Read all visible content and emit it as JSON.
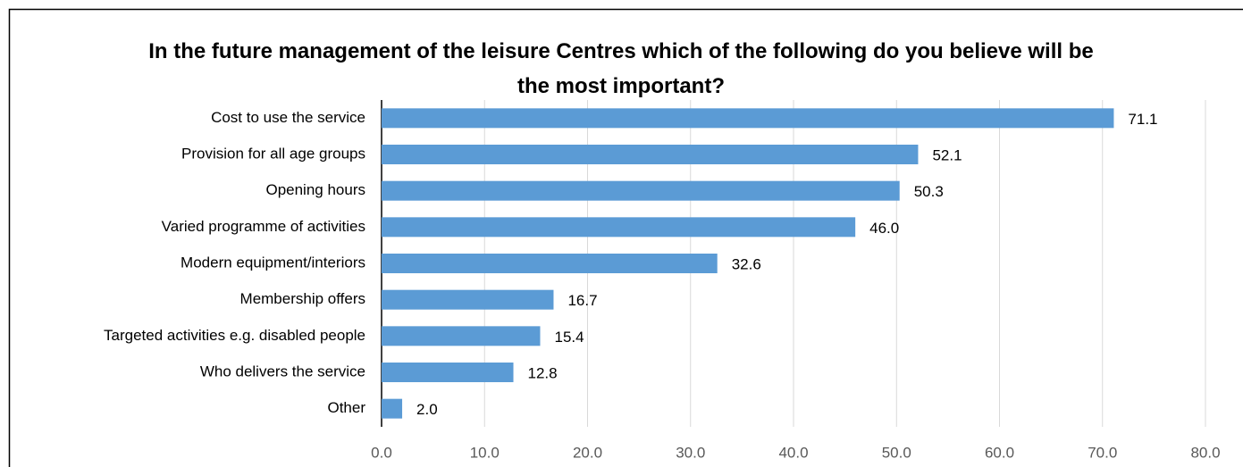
{
  "chart_data": {
    "type": "bar",
    "orientation": "horizontal",
    "title": "In the future management of the leisure Centres which of the following do you believe will be the most important?",
    "categories": [
      "Cost to use the service",
      "Provision for all age groups",
      "Opening hours",
      "Varied programme of activities",
      "Modern equipment/interiors",
      "Membership offers",
      "Targeted activities e.g. disabled people",
      "Who delivers the service",
      "Other"
    ],
    "values": [
      71.1,
      52.1,
      50.3,
      46,
      32.6,
      16.7,
      15.4,
      12.8,
      2
    ],
    "value_labels": [
      "71.1",
      "52.1",
      "50.3",
      "46.0",
      "32.6",
      "16.7",
      "15.4",
      "12.8",
      "2.0"
    ],
    "color": "#5b9bd5",
    "xlim": [
      0,
      80
    ],
    "xticks": [
      {
        "value": 0,
        "label": "0.0"
      },
      {
        "value": 10,
        "label": "10.0"
      },
      {
        "value": 20,
        "label": "20.0"
      },
      {
        "value": 30,
        "label": "30.0"
      },
      {
        "value": 40,
        "label": "40.0"
      },
      {
        "value": 50,
        "label": "50.0"
      },
      {
        "value": 60,
        "label": "60.0"
      },
      {
        "value": 70,
        "label": "70.0"
      },
      {
        "value": 80,
        "label": "80.0"
      }
    ],
    "grid": true
  }
}
